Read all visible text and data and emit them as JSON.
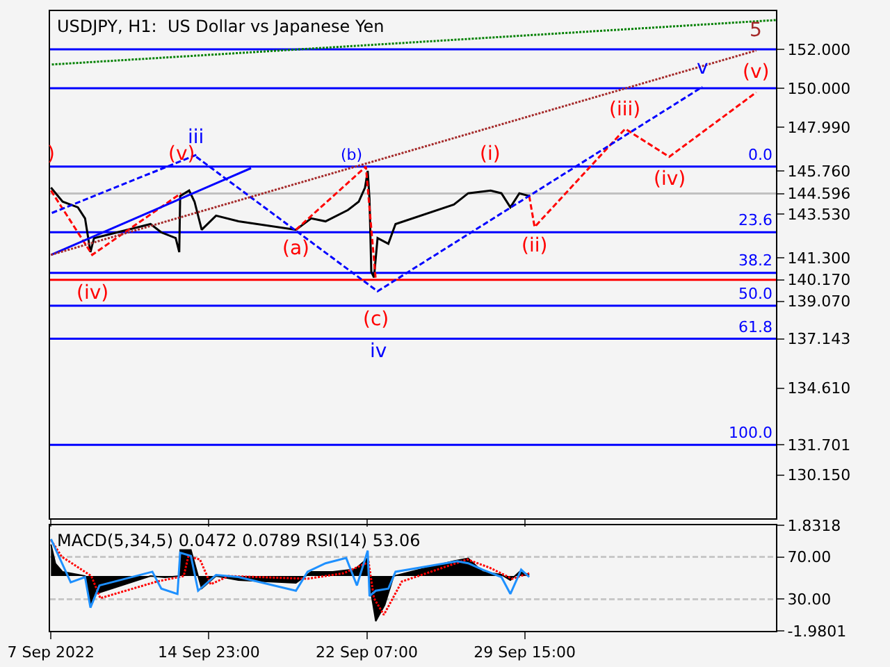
{
  "chart_data": [
    {
      "type": "line",
      "title": "USDJPY, H1:  US Dollar vs Japanese Yen",
      "xlim": [
        "2022-09-07T14:00",
        "2022-10-11T07:00"
      ],
      "xticks": [
        {
          "value": "2022-09-07T15:00",
          "label": null
        },
        {
          "value": "2022-09-14T23:00",
          "label": null
        },
        {
          "value": "2022-09-22T07:00",
          "label": null
        },
        {
          "value": "2022-09-29T15:00",
          "label": null
        }
      ],
      "ylim": [
        127.92,
        153.96
      ],
      "yticks": [
        {
          "value": 152.0,
          "label": "152.000"
        },
        {
          "value": 150.0,
          "label": "150.000"
        },
        {
          "value": 147.99,
          "label": "147.990"
        },
        {
          "value": 145.76,
          "label": "145.760"
        },
        {
          "value": 144.596,
          "label": "144.596"
        },
        {
          "value": 143.53,
          "label": "143.530"
        },
        {
          "value": 141.3,
          "label": "141.300"
        },
        {
          "value": 140.17,
          "label": "140.170"
        },
        {
          "value": 139.07,
          "label": "139.070"
        },
        {
          "value": 137.143,
          "label": "137.143"
        },
        {
          "value": 134.61,
          "label": "134.610"
        },
        {
          "value": 131.701,
          "label": "131.701"
        },
        {
          "value": 130.15,
          "label": "130.150"
        }
      ],
      "y2lim": [
        126.5,
        -55.9
      ],
      "y2ticks": [
        {
          "value": 0,
          "label": "0.0"
        },
        23.6,
        38.2,
        {
          "value": 50,
          "label": "50.0"
        },
        61.8,
        {
          "value": 100,
          "label": "100.0"
        }
      ],
      "tick_labels": "y",
      "grid": false,
      "series": [
        {
          "color": "#000000",
          "line_style": "solid",
          "x": [
            "2022-09-07T15:00",
            "2022-09-08T04:00",
            "2022-09-08T21:00",
            "2022-09-09T05:00",
            "2022-09-09T11:00",
            "2022-09-09T15:00",
            "2022-09-12T06:00",
            "2022-09-12T18:00",
            "2022-09-13T10:00",
            "2022-09-13T14:00",
            "2022-09-13T15:00",
            "2022-09-14T01:00",
            "2022-09-14T07:00",
            "2022-09-14T15:00",
            "2022-09-15T07:00",
            "2022-09-16T08:00",
            "2022-09-19T00:00",
            "2022-09-19T17:00",
            "2022-09-20T09:00",
            "2022-09-21T10:00",
            "2022-09-21T22:00",
            "2022-09-22T05:00",
            "2022-09-22T08:00",
            "2022-09-22T10:00",
            "2022-09-22T12:00",
            "2022-09-22T15:00",
            "2022-09-22T19:00",
            "2022-09-23T07:00",
            "2022-09-23T15:00",
            "2022-09-26T08:00",
            "2022-09-27T00:00",
            "2022-09-28T01:00",
            "2022-09-28T13:00",
            "2022-09-28T23:00",
            "2022-09-29T09:00",
            "2022-09-29T20:00"
          ],
          "values": [
            144.9,
            144.18,
            143.89,
            143.32,
            141.59,
            142.31,
            143.03,
            142.6,
            142.31,
            141.59,
            144.47,
            144.75,
            144.18,
            142.74,
            143.46,
            143.17,
            142.74,
            143.32,
            143.17,
            143.75,
            144.18,
            144.9,
            145.76,
            144.32,
            140.58,
            140.29,
            142.31,
            142.02,
            143.03,
            144.03,
            144.61,
            144.75,
            144.61,
            143.89,
            144.61,
            144.47
          ]
        },
        {
          "color": "#ff0000",
          "line_style": "dashed",
          "x": [
            "2022-09-29T20:00",
            "2022-09-30T02:00",
            "2022-10-04T07:00",
            "2022-10-06T08:00",
            "2022-10-10T09:00"
          ],
          "values": [
            144.47,
            142.88,
            147.92,
            146.48,
            149.79
          ]
        },
        {
          "color": "#ff0000",
          "line_style": "dashed",
          "x": [
            "2022-09-07T15:00",
            "2022-09-09T13:00",
            "2022-09-13T16:00",
            "2022-09-15T08:00",
            "2022-09-19T00:00",
            "2022-09-22T06:00",
            "2022-09-22T17:00"
          ],
          "values": [
            144.75,
            141.45,
            144.61,
            null,
            142.74,
            145.98,
            140.15
          ]
        },
        {
          "color": "#0000ff",
          "line_style": "dashed",
          "x": [
            "2022-09-14T09:00",
            "2022-09-22T19:00",
            "2022-10-07T21:00"
          ],
          "values": [
            146.48,
            139.58,
            150.07
          ]
        },
        {
          "color": "#0000ff",
          "line_style": "dashed",
          "x": [
            "2022-09-07T16:00",
            "2022-09-14T11:00"
          ],
          "values": [
            143.6,
            146.62
          ]
        },
        {
          "color": "#0000ff",
          "line_style": "solid",
          "x": [
            "2022-09-07T15:00",
            "2022-09-16T22:00"
          ],
          "values": [
            141.45,
            145.9
          ]
        },
        {
          "color": "#a52a2a",
          "line_style": "dotted",
          "x": [
            "2022-09-07T15:00",
            "2022-10-10T09:00"
          ],
          "values": [
            141.45,
            151.94
          ]
        },
        {
          "color": "#008000",
          "line_style": "dotted",
          "x": [
            "2022-09-07T16:00",
            "2022-10-11T07:00"
          ],
          "values": [
            151.22,
            153.5
          ]
        }
      ],
      "ref_lines": [
        {
          "axis": "y",
          "value": 152.0,
          "color": "#0000ff"
        },
        {
          "axis": "y",
          "value": 150.0,
          "color": "#0000ff"
        },
        {
          "axis": "y",
          "value": 145.98,
          "color": "#0000ff"
        },
        {
          "axis": "y",
          "value": 144.596,
          "color": "#c0c0c0"
        },
        {
          "axis": "y",
          "value": 142.61,
          "color": "#0000ff"
        },
        {
          "axis": "y",
          "value": 140.52,
          "color": "#0000ff"
        },
        {
          "axis": "y",
          "value": 140.17,
          "color": "#ff0000"
        },
        {
          "axis": "y",
          "value": 138.84,
          "color": "#0000ff"
        },
        {
          "axis": "y",
          "value": 137.143,
          "color": "#0000ff"
        },
        {
          "axis": "y",
          "value": 131.701,
          "color": "#0000ff"
        }
      ],
      "annotations": [
        {
          "text": ")",
          "x": "2022-09-07T15:00",
          "y": 144.9
        },
        {
          "text": "(iv)",
          "x": "2022-09-09T13:00",
          "y": 141.45
        },
        {
          "text": "(v)",
          "x": "2022-09-13T16:00",
          "y": 144.61
        },
        {
          "text": "iii",
          "x": "2022-09-14T09:00",
          "y": 146.48
        },
        {
          "text": "(a)",
          "x": "2022-09-19T00:00",
          "y": 142.74
        },
        {
          "text": "(b)",
          "x": "2022-09-22T06:00",
          "y": 145.98
        },
        {
          "text": "(c)",
          "x": "2022-09-22T17:00",
          "y": 140.15
        },
        {
          "text": "iv",
          "x": "2022-09-22T19:00",
          "y": 139.58
        },
        {
          "text": "(i)",
          "x": "2022-09-28T01:00",
          "y": 144.75
        },
        {
          "text": "(ii)",
          "x": "2022-09-30T02:00",
          "y": 142.88
        },
        {
          "text": "(iii)",
          "x": "2022-10-04T07:00",
          "y": 147.92
        },
        {
          "text": "(iv)",
          "x": "2022-10-06T08:00",
          "y": 146.48
        },
        {
          "text": "(v)",
          "x": "2022-10-10T09:00",
          "y": 149.79
        },
        {
          "text": "v",
          "x": "2022-10-07T21:00",
          "y": 150.07
        },
        {
          "text": "5",
          "x": "2022-10-10T09:00",
          "y": 151.94
        }
      ]
    },
    {
      "type": "line",
      "title": "MACD(5,34,5) 0.0472 0.0789 RSI(14) 53.06",
      "xlim": [
        "2022-09-07T14:00",
        "2022-10-11T07:00"
      ],
      "xticks": [
        {
          "value": "2022-09-07T15:00",
          "label": "7 Sep 2022"
        },
        {
          "value": "2022-09-14T23:00",
          "label": "14 Sep 23:00"
        },
        {
          "value": "2022-09-22T07:00",
          "label": "22 Sep 07:00"
        },
        {
          "value": "2022-09-29T15:00",
          "label": "29 Sep 15:00"
        }
      ],
      "ylim": [
        -1.9801,
        1.8318
      ],
      "yticks": [
        1.8318,
        -1.9801
      ],
      "y2lim": [
        0,
        100
      ],
      "y2ticks": [
        {
          "value": 70,
          "label": "70.00"
        },
        {
          "value": 30,
          "label": "30.00"
        }
      ],
      "ref_lines": [
        {
          "axis": "y2",
          "value": 70,
          "color": "#c8c8c8",
          "line_style": "dashed"
        },
        {
          "axis": "y2",
          "value": 30,
          "color": "#c8c8c8",
          "line_style": "dashed"
        }
      ],
      "series": [
        {
          "type": "area",
          "color": "#000000",
          "x": [
            "2022-09-07T15:00",
            "2022-09-07T20:00",
            "2022-09-08T04:00",
            "2022-09-08T21:00",
            "2022-09-09T05:00",
            "2022-09-09T11:00",
            "2022-09-09T17:00",
            "2022-09-12T06:00",
            "2022-09-12T22:00",
            "2022-09-13T14:00",
            "2022-09-13T15:00",
            "2022-09-14T03:00",
            "2022-09-14T11:00",
            "2022-09-14T15:00",
            "2022-09-15T07:00",
            "2022-09-16T08:00",
            "2022-09-19T00:00",
            "2022-09-19T17:00",
            "2022-09-20T17:00",
            "2022-09-21T18:00",
            "2022-09-22T08:00",
            "2022-09-22T12:00",
            "2022-09-22T17:00",
            "2022-09-23T03:00",
            "2022-09-23T13:00",
            "2022-09-26T08:00",
            "2022-09-27T00:00",
            "2022-09-27T16:00",
            "2022-09-28T13:00",
            "2022-09-28T23:00",
            "2022-09-29T09:00",
            "2022-09-29T20:00"
          ],
          "values": [
            1.14,
            0.45,
            0.15,
            0.05,
            0,
            -1.04,
            -0.64,
            0,
            -0.05,
            0,
            0.94,
            0.94,
            0,
            -0.45,
            0,
            -0.15,
            -0.25,
            0.15,
            0.15,
            0.25,
            0.64,
            -0.64,
            -1.63,
            -1.04,
            0,
            0.54,
            0.64,
            0.15,
            0.05,
            -0.15,
            0.15,
            0.05
          ]
        },
        {
          "type": "line",
          "color": "#ff0000",
          "line_style": "dotted",
          "x": [
            "2022-09-07T15:00",
            "2022-09-08T03:00",
            "2022-09-09T12:00",
            "2022-09-09T22:00",
            "2022-09-12T13:00",
            "2022-09-13T19:00",
            "2022-09-14T00:00",
            "2022-09-14T13:00",
            "2022-09-15T01:00",
            "2022-09-15T21:00",
            "2022-09-19T13:00",
            "2022-09-21T05:00",
            "2022-09-22T09:00",
            "2022-09-22T15:00",
            "2022-09-23T02:00",
            "2022-09-23T22:00",
            "2022-09-26T23:00",
            "2022-09-28T00:00",
            "2022-09-29T01:00",
            "2022-09-29T20:00"
          ],
          "values": [
            1.3,
            0.7,
            0.0,
            -0.8,
            -0.2,
            0.0,
            0.7,
            0.6,
            -0.3,
            0.0,
            -0.1,
            0.1,
            0.5,
            -0.8,
            -1.4,
            -0.2,
            0.6,
            0.3,
            -0.1,
            0.1
          ]
        },
        {
          "type": "line",
          "axis": "y2",
          "color": "#1e90ff",
          "line_style": "solid",
          "x": [
            "2022-09-07T15:00",
            "2022-09-08T13:00",
            "2022-09-09T05:00",
            "2022-09-09T11:00",
            "2022-09-09T21:00",
            "2022-09-12T08:00",
            "2022-09-12T18:00",
            "2022-09-13T12:00",
            "2022-09-13T15:00",
            "2022-09-14T03:00",
            "2022-09-14T11:00",
            "2022-09-15T07:00",
            "2022-09-16T08:00",
            "2022-09-19T00:00",
            "2022-09-19T13:00",
            "2022-09-20T09:00",
            "2022-09-21T08:00",
            "2022-09-21T20:00",
            "2022-09-22T08:00",
            "2022-09-22T10:00",
            "2022-09-22T17:00",
            "2022-09-23T07:00",
            "2022-09-23T15:00",
            "2022-09-26T12:00",
            "2022-09-27T00:00",
            "2022-09-27T16:00",
            "2022-09-28T13:00",
            "2022-09-28T23:00",
            "2022-09-29T11:00",
            "2022-09-29T20:00"
          ],
          "values": [
            87,
            46,
            51,
            22,
            43,
            56,
            40,
            35,
            74,
            71,
            38,
            53,
            51,
            38,
            56,
            64,
            69,
            43,
            76,
            33,
            38,
            40,
            56,
            66,
            64,
            58,
            51,
            35,
            58,
            51
          ]
        }
      ]
    }
  ]
}
